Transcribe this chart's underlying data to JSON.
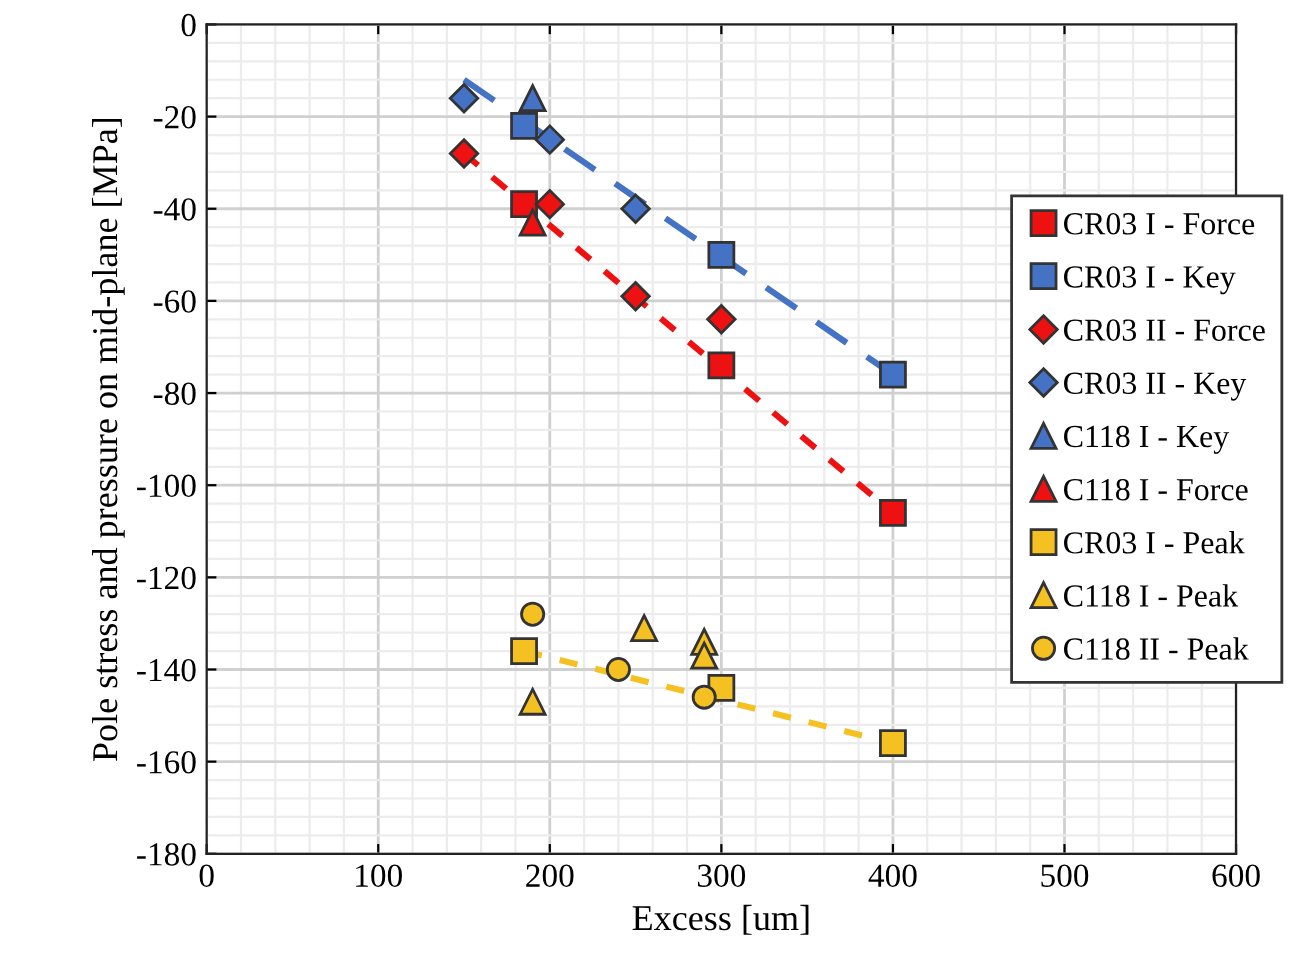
{
  "chart_data": {
    "type": "scatter",
    "xlabel": "Excess [um]",
    "ylabel": "Pole stress and pressure on mid-plane [MPa]",
    "xlim": [
      0,
      600
    ],
    "ylim": [
      -180,
      0
    ],
    "xticks": [
      0,
      100,
      200,
      300,
      400,
      500,
      600
    ],
    "yticks": [
      0,
      -20,
      -40,
      -60,
      -80,
      -100,
      -120,
      -140,
      -160,
      -180
    ],
    "grid": true,
    "legend": "right",
    "series": [
      {
        "type": "line",
        "color": "#4472c4",
        "line_style": "dashed",
        "marker": "none",
        "x": [
          150,
          400
        ],
        "values": [
          -12,
          -76
        ]
      },
      {
        "type": "line",
        "color": "#ee1111",
        "line_style": "dotted",
        "marker": "none",
        "x": [
          150,
          400
        ],
        "values": [
          -28,
          -106
        ]
      },
      {
        "type": "line",
        "color": "#f5c021",
        "line_style": "dotted",
        "marker": "none",
        "x": [
          185,
          400
        ],
        "values": [
          -136,
          -156
        ]
      },
      {
        "name": "CR03 I - Force",
        "color": "#ee1111",
        "marker": "square",
        "x": [
          185,
          300,
          400
        ],
        "values": [
          -39,
          -74,
          -106
        ]
      },
      {
        "name": "CR03 I - Key",
        "color": "#4472c4",
        "marker": "square",
        "x": [
          185,
          300,
          400
        ],
        "values": [
          -22,
          -50,
          -76
        ]
      },
      {
        "name": "CR03 II - Force",
        "color": "#ee1111",
        "marker": "diamond",
        "x": [
          150,
          200,
          250,
          300
        ],
        "values": [
          -28,
          -39,
          -59,
          -64
        ]
      },
      {
        "name": "CR03 II - Key",
        "color": "#4472c4",
        "marker": "diamond",
        "x": [
          150,
          200,
          250
        ],
        "values": [
          -16,
          -25,
          -40
        ]
      },
      {
        "name": "C118 I - Key",
        "color": "#4472c4",
        "marker": "triangle",
        "x": [
          190
        ],
        "values": [
          -16
        ]
      },
      {
        "name": "C118 I - Force",
        "color": "#ee1111",
        "marker": "triangle",
        "x": [
          190
        ],
        "values": [
          -43
        ]
      },
      {
        "name": "CR03 I - Peak",
        "color": "#f5c021",
        "marker": "square",
        "x": [
          185,
          300,
          400
        ],
        "values": [
          -136,
          -144,
          -156
        ]
      },
      {
        "name": "C118 I - Peak",
        "color": "#f5c021",
        "marker": "triangle",
        "x": [
          190,
          255,
          290,
          290
        ],
        "values": [
          -147,
          -131,
          -134,
          -137
        ]
      },
      {
        "name": "C118 II - Peak",
        "color": "#f5c021",
        "marker": "circle",
        "x": [
          190,
          240,
          290
        ],
        "values": [
          -128,
          -140,
          -146
        ]
      }
    ]
  }
}
